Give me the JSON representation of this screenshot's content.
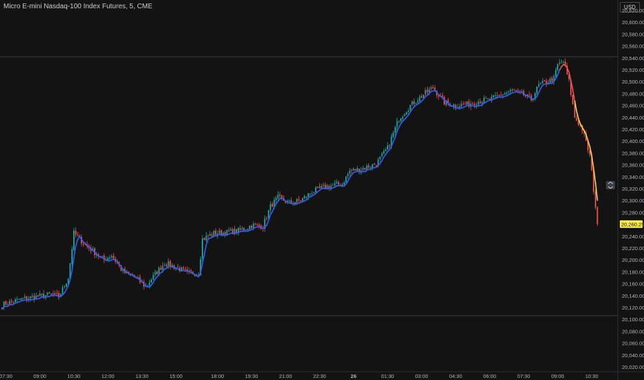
{
  "header": {
    "title": "Micro E-mini Nasdaq-100 Index Futures, 5, CME",
    "currency_button": "USD"
  },
  "chart_data": {
    "type": "candlestick",
    "title": "Micro E-mini Nasdaq-100 Index Futures, 5, CME",
    "interval": "5",
    "exchange": "CME",
    "currency": "USD",
    "y_axis": {
      "ylim": [
        20014,
        20628
      ],
      "ticks": [
        20620,
        20600,
        20580,
        20560,
        20540,
        20520,
        20500,
        20480,
        20460,
        20440,
        20420,
        20400,
        20380,
        20360,
        20340,
        20320,
        20300,
        20280,
        20260,
        20240,
        20220,
        20200,
        20180,
        20160,
        20140,
        20120,
        20100,
        20080,
        20060,
        20040,
        20020
      ],
      "tick_labels": [
        "20,620.00",
        "20,600.00",
        "20,580.00",
        "20,560.00",
        "20,540.00",
        "20,520.00",
        "20,500.00",
        "20,480.00",
        "20,460.00",
        "20,440.00",
        "20,420.00",
        "20,400.00",
        "20,380.00",
        "20,360.00",
        "20,340.00",
        "20,320.00",
        "20,300.00",
        "20,280.00",
        "20,260.00",
        "20,240.00",
        "20,220.00",
        "20,200.00",
        "20,180.00",
        "20,160.00",
        "20,140.00",
        "20,120.00",
        "20,100.00",
        "20,080.00",
        "20,060.00",
        "20,040.00",
        "20,020.00"
      ]
    },
    "x_axis": {
      "ticks": [
        {
          "bar": 2,
          "label": "07:30"
        },
        {
          "bar": 20,
          "label": "09:00"
        },
        {
          "bar": 38,
          "label": "10:30"
        },
        {
          "bar": 56,
          "label": "12:00"
        },
        {
          "bar": 74,
          "label": "13:30"
        },
        {
          "bar": 92,
          "label": "15:00"
        },
        {
          "bar": 114,
          "label": "18:00"
        },
        {
          "bar": 132,
          "label": "19:30"
        },
        {
          "bar": 150,
          "label": "21:00"
        },
        {
          "bar": 168,
          "label": "22:30"
        },
        {
          "bar": 186,
          "label": "26",
          "bold": true
        },
        {
          "bar": 204,
          "label": "01:30"
        },
        {
          "bar": 222,
          "label": "03:00"
        },
        {
          "bar": 240,
          "label": "04:30"
        },
        {
          "bar": 258,
          "label": "06:00"
        },
        {
          "bar": 276,
          "label": "07:30"
        },
        {
          "bar": 294,
          "label": "09:00"
        },
        {
          "bar": 312,
          "label": "10:30"
        }
      ]
    },
    "bar_count": 316,
    "anchors": [
      [
        0,
        20125
      ],
      [
        12,
        20135
      ],
      [
        26,
        20142
      ],
      [
        30,
        20138
      ],
      [
        35,
        20170
      ],
      [
        38,
        20245
      ],
      [
        42,
        20232
      ],
      [
        48,
        20215
      ],
      [
        54,
        20200
      ],
      [
        58,
        20208
      ],
      [
        64,
        20180
      ],
      [
        70,
        20172
      ],
      [
        76,
        20155
      ],
      [
        80,
        20172
      ],
      [
        86,
        20195
      ],
      [
        92,
        20188
      ],
      [
        98,
        20178
      ],
      [
        104,
        20178
      ],
      [
        106,
        20235
      ],
      [
        112,
        20245
      ],
      [
        118,
        20246
      ],
      [
        126,
        20250
      ],
      [
        132,
        20258
      ],
      [
        138,
        20257
      ],
      [
        142,
        20290
      ],
      [
        146,
        20305
      ],
      [
        152,
        20296
      ],
      [
        158,
        20300
      ],
      [
        164,
        20315
      ],
      [
        172,
        20324
      ],
      [
        180,
        20328
      ],
      [
        184,
        20350
      ],
      [
        190,
        20353
      ],
      [
        198,
        20362
      ],
      [
        204,
        20388
      ],
      [
        210,
        20438
      ],
      [
        216,
        20460
      ],
      [
        222,
        20476
      ],
      [
        228,
        20490
      ],
      [
        234,
        20465
      ],
      [
        240,
        20460
      ],
      [
        246,
        20462
      ],
      [
        252,
        20467
      ],
      [
        258,
        20470
      ],
      [
        264,
        20478
      ],
      [
        270,
        20485
      ],
      [
        276,
        20478
      ],
      [
        280,
        20470
      ],
      [
        284,
        20494
      ],
      [
        292,
        20505
      ],
      [
        294,
        20528
      ],
      [
        297,
        20534
      ],
      [
        300,
        20500
      ],
      [
        303,
        20440
      ],
      [
        307,
        20420
      ],
      [
        311,
        20375
      ],
      [
        315,
        20262
      ]
    ],
    "last_price": 20260.25,
    "last_price_label": "20,260.25",
    "reference_lines": [
      20542,
      20106
    ],
    "series": [
      {
        "name": "",
        "type": "candles",
        "up_color": "#26a69a",
        "down_color": "#ef5350"
      },
      {
        "name": "",
        "type": "line",
        "colors": [
          "#2962ff",
          "#ef5350",
          "#ffd54f"
        ]
      }
    ],
    "grid": false,
    "legend": "none"
  }
}
